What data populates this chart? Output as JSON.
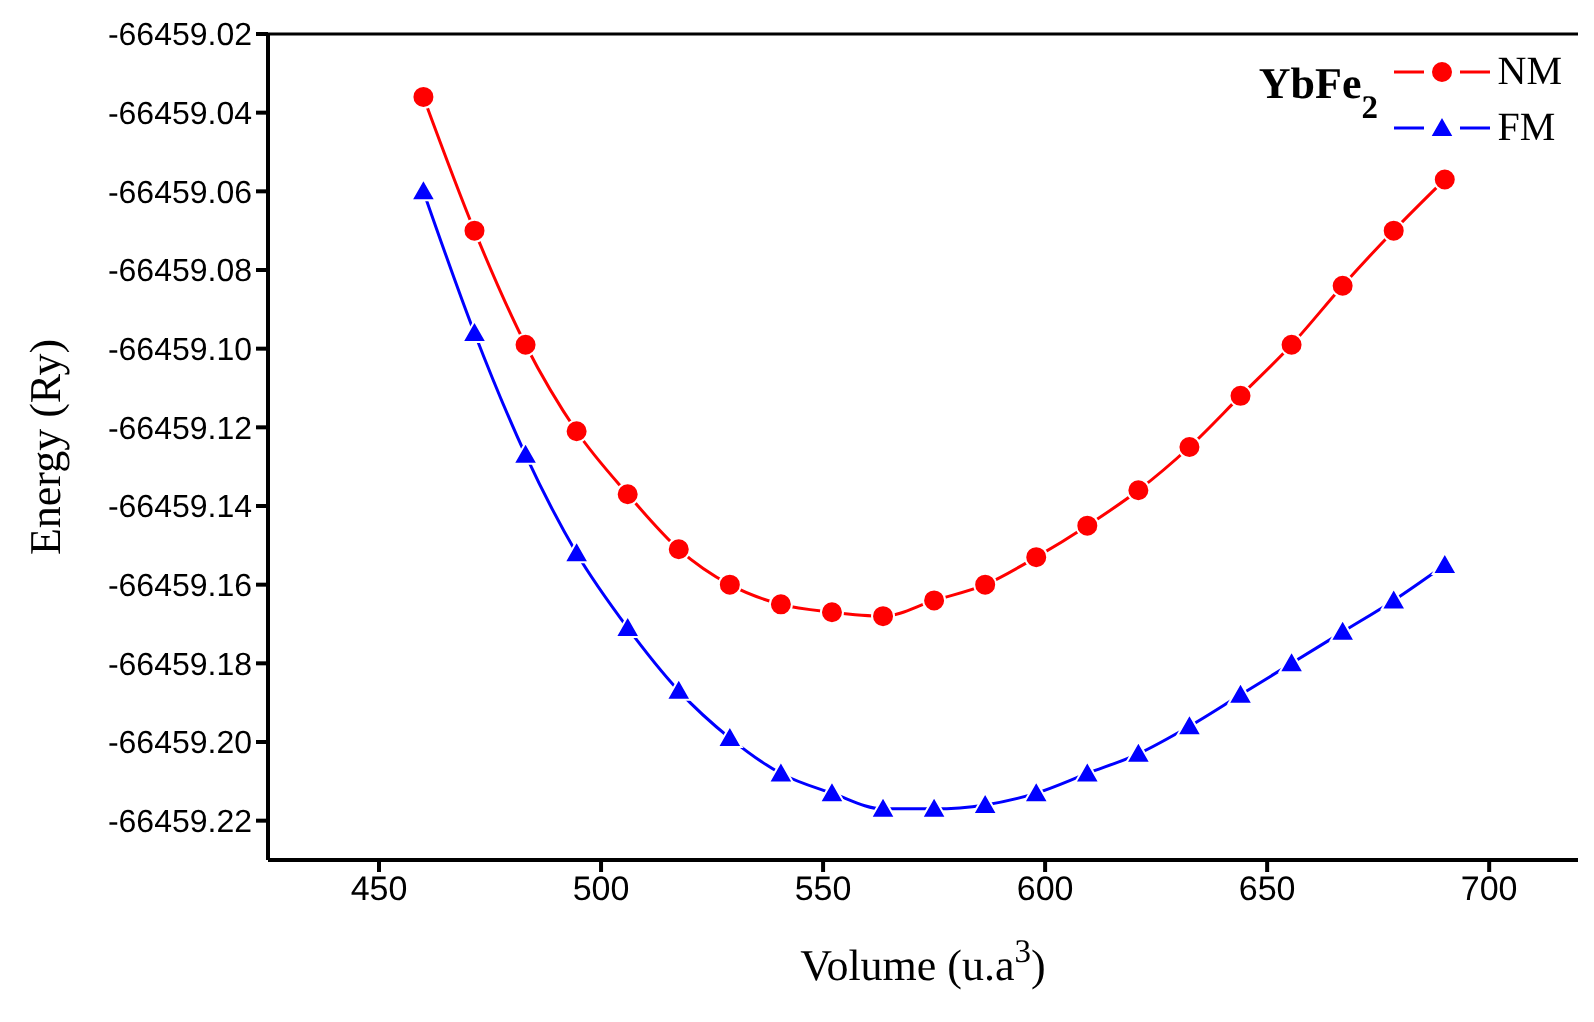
{
  "chart_data": {
    "type": "line",
    "title": "YbFe$_{2}$",
    "xlabel": "Volume (u.a$^{3}$)",
    "ylabel": "Energy (Ry)",
    "x": [
      460,
      471.5,
      483,
      494.5,
      506,
      517.5,
      529,
      540.5,
      552,
      563.5,
      575,
      586.5,
      598,
      609.5,
      621,
      632.5,
      644,
      655.5,
      667,
      678.5,
      690
    ],
    "series": [
      {
        "name": "NM",
        "color": "#ff0000",
        "marker": "circle",
        "values": [
          -66459.036,
          -66459.07,
          -66459.099,
          -66459.121,
          -66459.137,
          -66459.151,
          -66459.16,
          -66459.165,
          -66459.167,
          -66459.168,
          -66459.164,
          -66459.16,
          -66459.153,
          -66459.145,
          -66459.136,
          -66459.125,
          -66459.112,
          -66459.099,
          -66459.084,
          -66459.07,
          -66459.057
        ]
      },
      {
        "name": "FM",
        "color": "#0000ff",
        "marker": "triangle",
        "values": [
          -66459.06,
          -66459.096,
          -66459.127,
          -66459.152,
          -66459.171,
          -66459.187,
          -66459.199,
          -66459.208,
          -66459.213,
          -66459.217,
          -66459.217,
          -66459.216,
          -66459.213,
          -66459.208,
          -66459.203,
          -66459.196,
          -66459.188,
          -66459.18,
          -66459.172,
          -66459.164,
          -66459.155
        ]
      }
    ],
    "xlim": [
      425,
      720
    ],
    "xticks": [
      450,
      500,
      550,
      600,
      650,
      700
    ],
    "ylim": [
      -66459.23,
      -66459.02
    ],
    "yticks": [
      -66459.02,
      -66459.04,
      -66459.06,
      -66459.08,
      {
        "value": -66459.1,
        "label": "-66459.10"
      },
      -66459.12,
      -66459.14,
      -66459.16,
      -66459.18,
      {
        "value": -66459.2,
        "label": "-66459.20"
      },
      -66459.22
    ],
    "grid": false,
    "legend": "top right",
    "line_style": "solid"
  }
}
